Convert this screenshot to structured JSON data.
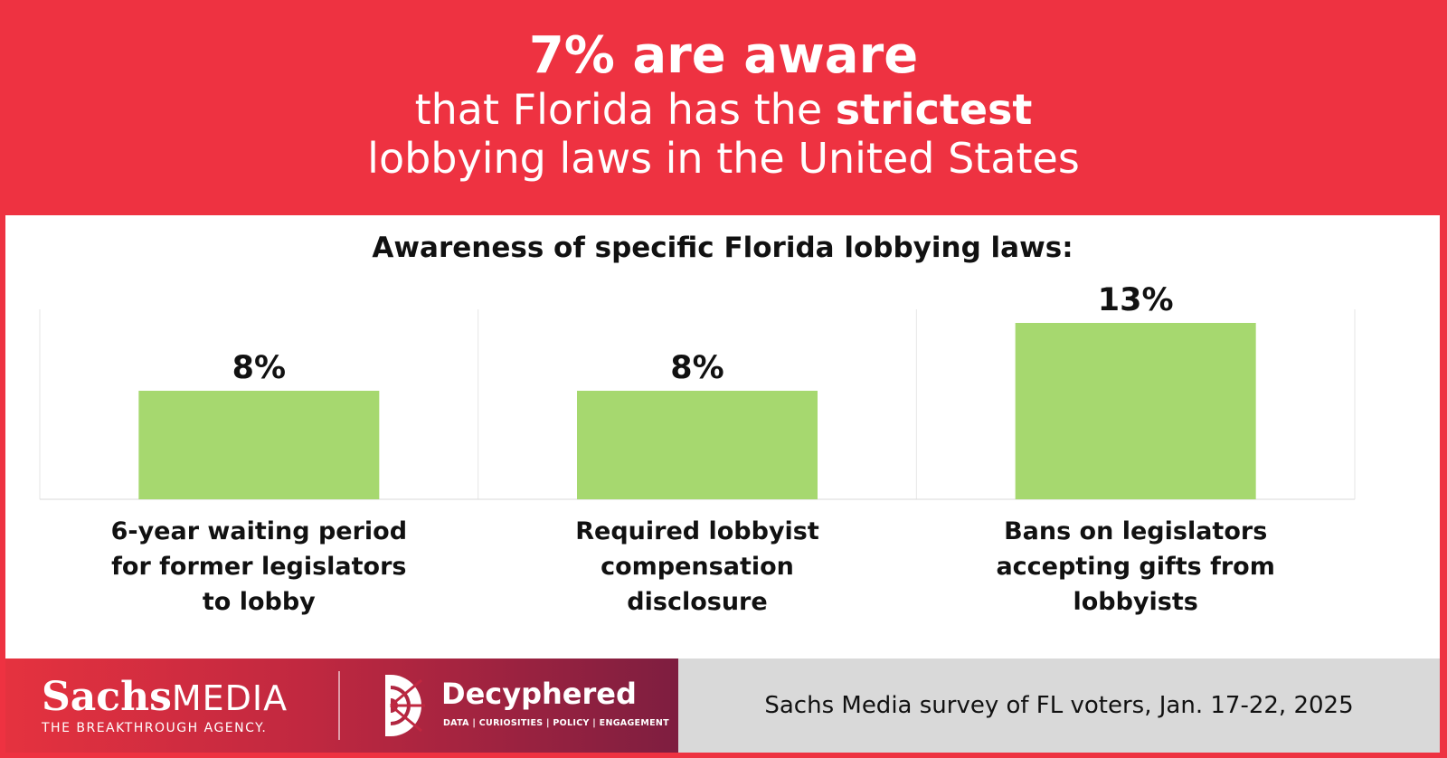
{
  "header": {
    "headline": "7% are aware",
    "line2_prefix": "that Florida has the ",
    "line2_emphasis": "strictest",
    "line3": "lobbying laws in the United States"
  },
  "colors": {
    "header_bg": "#EE3241",
    "bar": "#A6D86F",
    "footer_gray": "#D9D9D9",
    "footer_gradient_end": "#7E1E40"
  },
  "chart_data": {
    "type": "bar",
    "title": "Awareness of specific Florida lobbying laws:",
    "categories": [
      [
        "6-year waiting period",
        "for former legislators",
        "to lobby"
      ],
      [
        "Required lobbyist",
        "compensation",
        "disclosure"
      ],
      [
        "Bans on legislators",
        "accepting gifts from",
        "lobbyists"
      ]
    ],
    "values": [
      8,
      8,
      13
    ],
    "data_labels": [
      "8%",
      "8%",
      "13%"
    ],
    "unit": "%",
    "ylim": [
      0,
      14
    ],
    "grid": false,
    "legend": "none"
  },
  "footer": {
    "sachs_bold": "Sachs",
    "sachs_light": "MEDIA",
    "sachs_tagline": "THE BREAKTHROUGH AGENCY.",
    "decyphered_name": "Decyphered",
    "decyphered_tagline": "DATA | CURIOSITIES | POLICY | ENGAGEMENT",
    "source": "Sachs Media survey of FL voters, Jan. 17-22, 2025",
    "icons": [
      "decyphered-logo-icon"
    ]
  }
}
